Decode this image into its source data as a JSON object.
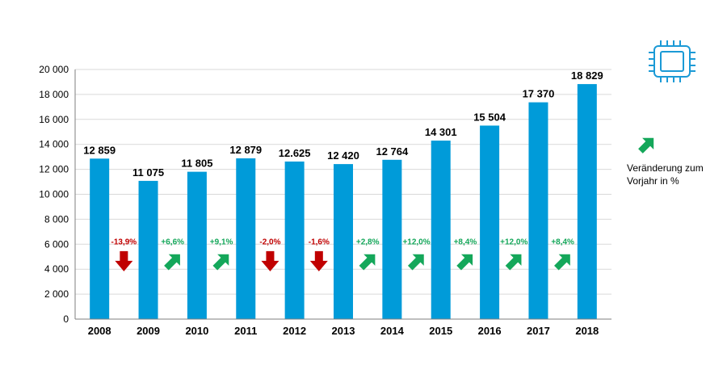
{
  "chart_data": {
    "type": "bar",
    "categories": [
      "2008",
      "2009",
      "2010",
      "2011",
      "2012",
      "2013",
      "2014",
      "2015",
      "2016",
      "2017",
      "2018"
    ],
    "values": [
      12859,
      11075,
      11805,
      12879,
      12625,
      12420,
      12764,
      14301,
      15504,
      17370,
      18829
    ],
    "value_labels": [
      "12 859",
      "11 075",
      "11 805",
      "12 879",
      "12.625",
      "12 420",
      "12 764",
      "14 301",
      "15 504",
      "17 370",
      "18 829"
    ],
    "changes": [
      {
        "label": "-13,9%",
        "direction": "down"
      },
      {
        "label": "+6,6%",
        "direction": "up"
      },
      {
        "label": "+9,1%",
        "direction": "up"
      },
      {
        "label": "-2,0%",
        "direction": "down"
      },
      {
        "label": "-1,6%",
        "direction": "down"
      },
      {
        "label": "+2,8%",
        "direction": "up"
      },
      {
        "label": "+12,0%",
        "direction": "up"
      },
      {
        "label": "+8,4%",
        "direction": "up"
      },
      {
        "label": "+12,0%",
        "direction": "up"
      },
      {
        "label": "+8,4%",
        "direction": "up"
      }
    ],
    "yticks": [
      "0",
      "2 000",
      "4 000",
      "6 000",
      "8 000",
      "10 000",
      "12 000",
      "14 000",
      "16 000",
      "18 000",
      "20 000"
    ],
    "ylim": [
      0,
      20000
    ],
    "grid": true,
    "legend": {
      "text_line1": "Veränderung zum",
      "text_line2": "Vorjahr in %",
      "position": "right"
    },
    "colors": {
      "bar": "#009bd9",
      "up": "#14a75a",
      "down": "#c00000",
      "grid": "#d9d9d9",
      "icon": "#1b9ad6"
    }
  },
  "icons": {
    "corner_icon": "microchip-icon"
  }
}
